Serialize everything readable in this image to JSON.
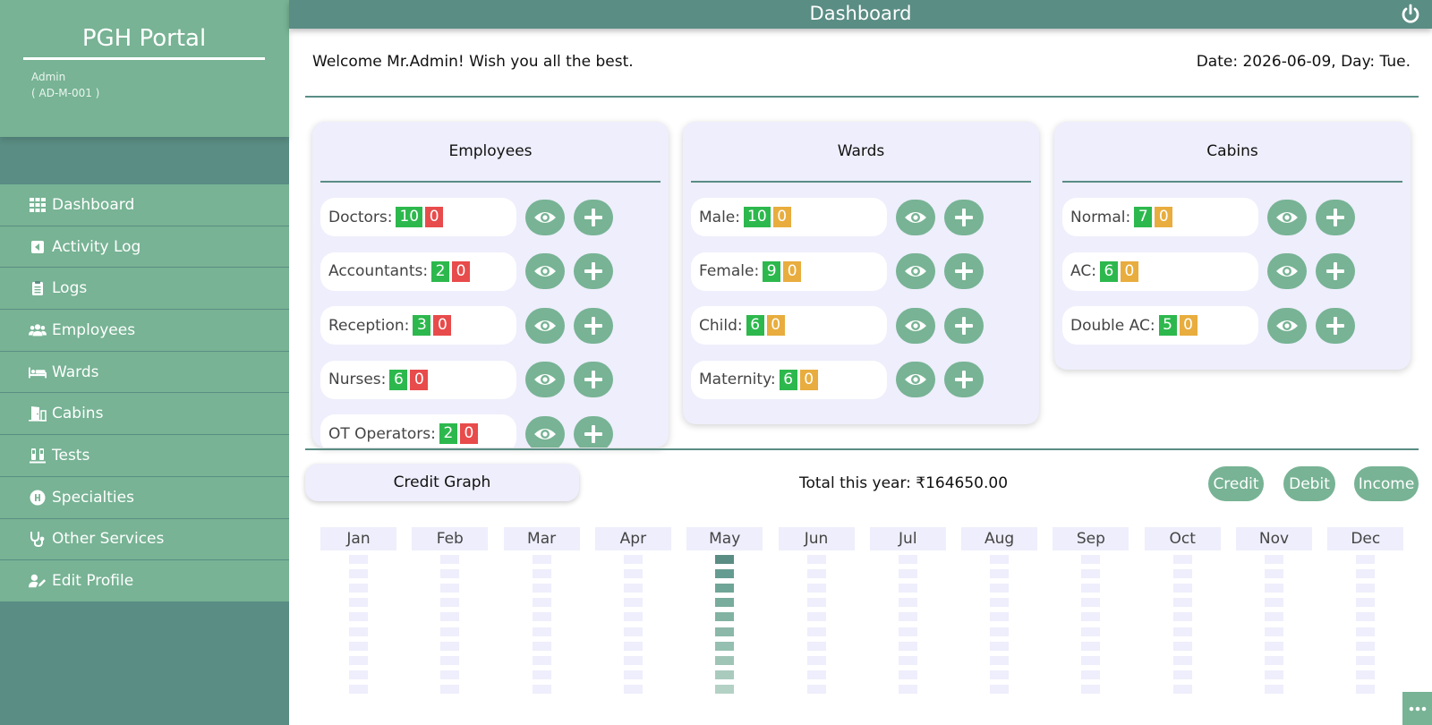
{
  "brand": {
    "title": "PGH Portal",
    "admin_name": "Admin",
    "admin_id": "( AD-M-001 )"
  },
  "nav": [
    {
      "label": "Dashboard",
      "icon": "grid-icon"
    },
    {
      "label": "Activity Log",
      "icon": "back-arrow-icon"
    },
    {
      "label": "Logs",
      "icon": "clipboard-icon"
    },
    {
      "label": "Employees",
      "icon": "users-icon"
    },
    {
      "label": "Wards",
      "icon": "bed-icon"
    },
    {
      "label": "Cabins",
      "icon": "door-icon"
    },
    {
      "label": "Tests",
      "icon": "vials-icon"
    },
    {
      "label": "Specialties",
      "icon": "hospital-icon"
    },
    {
      "label": "Other Services",
      "icon": "stethoscope-icon"
    },
    {
      "label": "Edit Profile",
      "icon": "user-edit-icon"
    }
  ],
  "header": {
    "title": "Dashboard"
  },
  "welcome": "Welcome Mr.Admin! Wish you all the best.",
  "date": "Date: 2026-06-09, Day: Tue.",
  "cards": {
    "employees": {
      "title": "Employees",
      "rows": [
        {
          "label": "Doctors:",
          "a": "10",
          "b": "0"
        },
        {
          "label": "Accountants:",
          "a": "2",
          "b": "0"
        },
        {
          "label": "Reception:",
          "a": "3",
          "b": "0"
        },
        {
          "label": "Nurses:",
          "a": "6",
          "b": "0"
        },
        {
          "label": "OT Operators:",
          "a": "2",
          "b": "0"
        }
      ]
    },
    "wards": {
      "title": "Wards",
      "rows": [
        {
          "label": "Male:",
          "a": "10",
          "b": "0"
        },
        {
          "label": "Female:",
          "a": "9",
          "b": "0"
        },
        {
          "label": "Child:",
          "a": "6",
          "b": "0"
        },
        {
          "label": "Maternity:",
          "a": "6",
          "b": "0"
        }
      ]
    },
    "cabins": {
      "title": "Cabins",
      "rows": [
        {
          "label": "Normal:",
          "a": "7",
          "b": "0"
        },
        {
          "label": "AC:",
          "a": "6",
          "b": "0"
        },
        {
          "label": "Double AC:",
          "a": "5",
          "b": "0"
        }
      ]
    }
  },
  "graph": {
    "tab_label": "Credit Graph",
    "total": "Total this year: ₹164650.00",
    "buttons": {
      "credit": "Credit",
      "debit": "Debit",
      "income": "Income"
    }
  },
  "colors": {
    "accent": "#77b394",
    "dark": "#5a8d84",
    "green": "#2db84d",
    "red": "#e84b4b",
    "yellow": "#e8ad3e",
    "panel": "#eeeefc"
  },
  "chart_data": {
    "type": "bar",
    "categories": [
      "Jan",
      "Feb",
      "Mar",
      "Apr",
      "May",
      "Jun",
      "Jul",
      "Aug",
      "Sep",
      "Oct",
      "Nov",
      "Dec"
    ],
    "values": [
      0,
      0,
      0,
      0,
      164650,
      0,
      0,
      0,
      0,
      0,
      0,
      0
    ],
    "segments": 10
  }
}
